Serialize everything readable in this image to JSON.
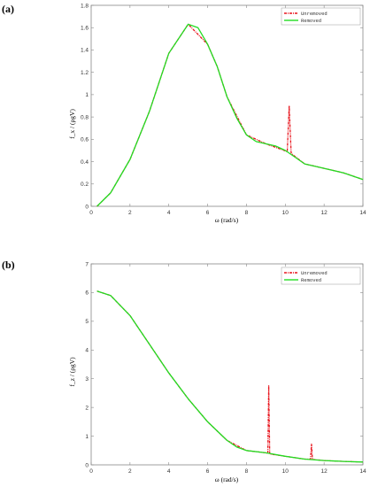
{
  "chart_data": [
    {
      "type": "line",
      "panel_label": "(a)",
      "xlabel": "ω (rad/s)",
      "ylabel": "f_x / (ρgV)",
      "xlim": [
        0,
        14
      ],
      "ylim": [
        0,
        1.8
      ],
      "xticks": [
        0,
        2,
        4,
        6,
        8,
        10,
        12,
        14
      ],
      "yticks": [
        0,
        0.2,
        0.4,
        0.6,
        0.8,
        1,
        1.2,
        1.4,
        1.6,
        1.8
      ],
      "tick_labels_x": [
        "0",
        "2",
        "4",
        "6",
        "8",
        "10",
        "12",
        "14"
      ],
      "tick_labels_y": [
        "0",
        "0.2",
        "0.4",
        "0.6",
        "0.8",
        "1",
        "1.2",
        "1.4",
        "1.6",
        "1.8"
      ],
      "legend_position": "top-right",
      "series": [
        {
          "name": "Unremoved",
          "color": "#e8141c",
          "style": "dash-dot",
          "x": [
            0.3,
            1,
            2,
            3,
            4,
            5,
            6,
            6.5,
            7,
            8,
            9,
            10.1,
            10.2,
            10.3,
            10.4,
            11,
            12,
            13,
            14
          ],
          "y": [
            0.0,
            0.12,
            0.42,
            0.85,
            1.37,
            1.63,
            1.45,
            1.25,
            0.98,
            0.64,
            0.56,
            0.49,
            0.9,
            0.48,
            0.46,
            0.38,
            0.34,
            0.3,
            0.24
          ]
        },
        {
          "name": "Removed",
          "color": "#22dd22",
          "style": "solid",
          "x": [
            0.3,
            1,
            2,
            3,
            4,
            5,
            5.5,
            6,
            6.5,
            7,
            7.5,
            8,
            8.5,
            9,
            9.5,
            10,
            10.5,
            11,
            12,
            13,
            14
          ],
          "y": [
            0.0,
            0.12,
            0.42,
            0.85,
            1.37,
            1.63,
            1.6,
            1.45,
            1.25,
            0.98,
            0.79,
            0.64,
            0.58,
            0.56,
            0.54,
            0.5,
            0.44,
            0.38,
            0.34,
            0.3,
            0.24
          ]
        }
      ]
    },
    {
      "type": "line",
      "panel_label": "(b)",
      "xlabel": "ω (rad/s)",
      "ylabel": "f_z / (ρgV)",
      "xlim": [
        0,
        14
      ],
      "ylim": [
        0,
        7
      ],
      "xticks": [
        0,
        2,
        4,
        6,
        8,
        10,
        12,
        14
      ],
      "yticks": [
        0,
        1,
        2,
        3,
        4,
        5,
        6,
        7
      ],
      "tick_labels_x": [
        "0",
        "2",
        "4",
        "6",
        "8",
        "10",
        "12",
        "14"
      ],
      "tick_labels_y": [
        "0",
        "1",
        "2",
        "3",
        "4",
        "5",
        "6",
        "7"
      ],
      "legend_position": "top-right",
      "series": [
        {
          "name": "Unremoved",
          "color": "#e8141c",
          "style": "dash-dot",
          "x": [
            0.3,
            1,
            2,
            3,
            4,
            5,
            6,
            7,
            8,
            9,
            9.1,
            9.15,
            9.2,
            10,
            11,
            11.3,
            11.35,
            11.4,
            12,
            13,
            14
          ],
          "y": [
            6.05,
            5.9,
            5.2,
            4.2,
            3.2,
            2.3,
            1.5,
            0.85,
            0.5,
            0.42,
            0.4,
            2.75,
            0.38,
            0.3,
            0.2,
            0.2,
            0.72,
            0.19,
            0.15,
            0.12,
            0.1
          ]
        },
        {
          "name": "Removed",
          "color": "#22dd22",
          "style": "solid",
          "x": [
            0.3,
            1,
            2,
            3,
            4,
            5,
            6,
            7,
            7.5,
            8,
            9,
            10,
            11,
            12,
            13,
            14
          ],
          "y": [
            6.05,
            5.9,
            5.2,
            4.2,
            3.2,
            2.3,
            1.5,
            0.85,
            0.62,
            0.5,
            0.42,
            0.3,
            0.2,
            0.15,
            0.12,
            0.1
          ]
        }
      ]
    }
  ]
}
